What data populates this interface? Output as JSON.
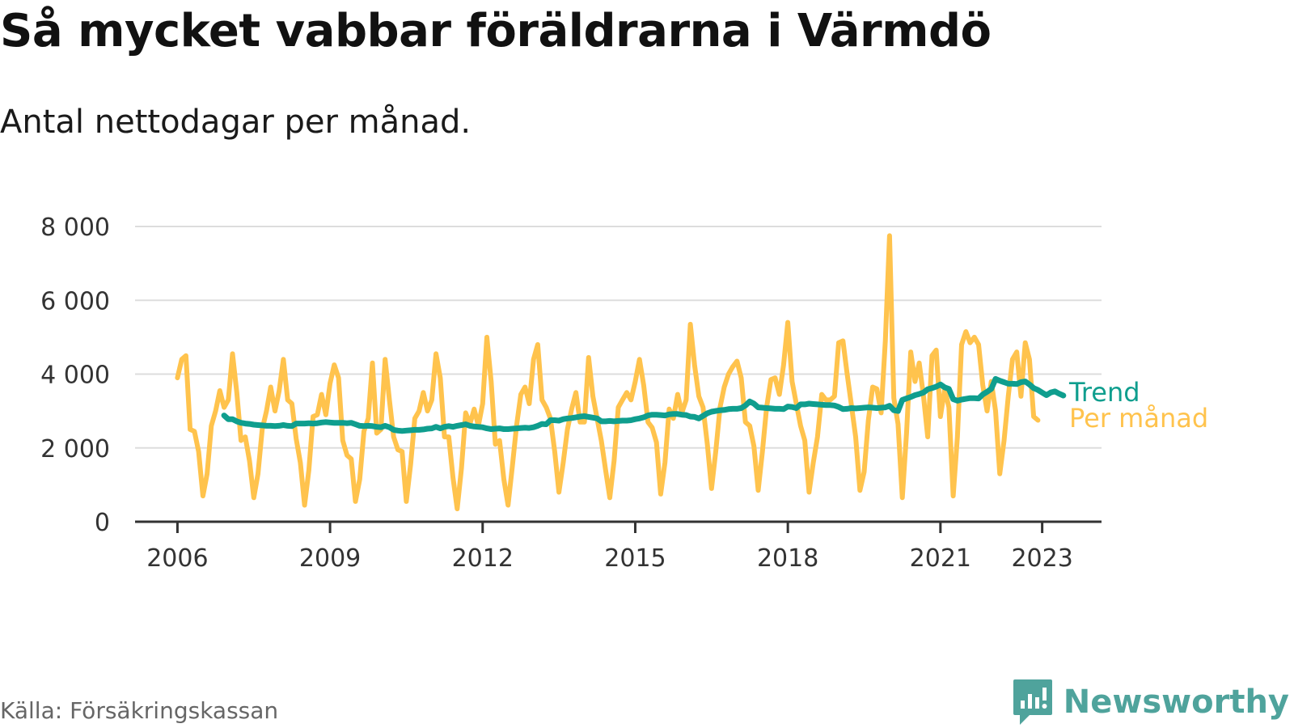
{
  "title": "Så mycket vabbar föräldrarna i Värmdö",
  "subtitle": "Antal nettodagar per månad.",
  "source": "Källa: Försäkringskassan",
  "brand": {
    "name": "Newsworthy",
    "icon": "newsworthy-logo-icon"
  },
  "colors": {
    "monthly": "#ffc34d",
    "trend": "#0f9e8e",
    "grid": "#dddddd",
    "axis": "#333333"
  },
  "chart_data": {
    "type": "line",
    "title": "Så mycket vabbar föräldrarna i Värmdö",
    "subtitle": "Antal nettodagar per månad.",
    "xlabel": "",
    "ylabel": "",
    "ylim": [
      0,
      8000
    ],
    "xlim": [
      "2005-03",
      "2024-03"
    ],
    "yticks": [
      0,
      2000,
      4000,
      6000,
      8000
    ],
    "ytick_labels": [
      "0",
      "2 000",
      "4 000",
      "6 000",
      "8 000"
    ],
    "xticks": [
      "2006-01",
      "2009-01",
      "2012-01",
      "2015-01",
      "2018-01",
      "2021-01",
      "2023-01"
    ],
    "xtick_labels": [
      "2006",
      "2009",
      "2012",
      "2015",
      "2018",
      "2021",
      "2023"
    ],
    "grid": true,
    "legend": "right-inline",
    "series": [
      {
        "name": "Per månad",
        "start": "2006-01",
        "values": [
          3900,
          4400,
          4500,
          2500,
          2450,
          1900,
          700,
          1300,
          2600,
          3000,
          3550,
          3100,
          3300,
          4550,
          3500,
          2200,
          2300,
          1650,
          650,
          1300,
          2500,
          3000,
          3650,
          3000,
          3550,
          4400,
          3300,
          3200,
          2250,
          1600,
          450,
          1400,
          2850,
          2900,
          3450,
          2900,
          3750,
          4250,
          3900,
          2200,
          1800,
          1700,
          550,
          1150,
          2450,
          2800,
          4300,
          2400,
          2500,
          4400,
          3300,
          2300,
          1950,
          1900,
          550,
          1550,
          2800,
          3000,
          3500,
          3000,
          3300,
          4550,
          3900,
          2300,
          2300,
          1200,
          350,
          1450,
          2950,
          2650,
          3050,
          2600,
          3200,
          5000,
          3800,
          2100,
          2200,
          1150,
          450,
          1500,
          2600,
          3450,
          3650,
          3200,
          4400,
          4800,
          3300,
          3100,
          2800,
          1900,
          800,
          1600,
          2500,
          3050,
          3500,
          2700,
          2700,
          4450,
          3400,
          2800,
          2200,
          1400,
          650,
          1650,
          3100,
          3300,
          3500,
          3300,
          3800,
          4400,
          3700,
          2700,
          2550,
          2150,
          750,
          1600,
          3050,
          2800,
          3450,
          2950,
          3300,
          5350,
          4250,
          3400,
          3100,
          2100,
          900,
          1900,
          3100,
          3650,
          4000,
          4200,
          4350,
          3900,
          2700,
          2600,
          2050,
          850,
          1900,
          3100,
          3850,
          3900,
          3450,
          4250,
          5400,
          3800,
          3200,
          2600,
          2200,
          800,
          1600,
          2300,
          3450,
          3300,
          3300,
          3400,
          4850,
          4900,
          4000,
          3150,
          2300,
          850,
          1350,
          2750,
          3650,
          3600,
          2950,
          4900,
          7750,
          3350,
          2650,
          650,
          2400,
          4600,
          3800,
          4300,
          3400,
          2300,
          4500,
          4650,
          2850,
          3600,
          3100,
          700,
          2300,
          4800,
          5150,
          4850,
          5000,
          4800,
          3700,
          3000,
          3800,
          3000,
          1300,
          2200,
          3400,
          4400,
          4600,
          3400,
          4850,
          4400,
          2850,
          2750
        ]
      },
      {
        "name": "Trend",
        "start": "2006-12",
        "values": [
          2880,
          2780,
          2780,
          2720,
          2680,
          2660,
          2650,
          2630,
          2620,
          2610,
          2600,
          2600,
          2590,
          2600,
          2620,
          2600,
          2590,
          2660,
          2660,
          2660,
          2670,
          2660,
          2670,
          2690,
          2700,
          2690,
          2680,
          2680,
          2680,
          2670,
          2680,
          2640,
          2600,
          2590,
          2600,
          2590,
          2570,
          2560,
          2600,
          2560,
          2490,
          2470,
          2460,
          2470,
          2480,
          2490,
          2490,
          2500,
          2520,
          2530,
          2570,
          2530,
          2570,
          2590,
          2570,
          2600,
          2620,
          2640,
          2600,
          2580,
          2570,
          2560,
          2530,
          2510,
          2520,
          2530,
          2510,
          2510,
          2520,
          2530,
          2540,
          2550,
          2540,
          2560,
          2600,
          2650,
          2640,
          2750,
          2750,
          2740,
          2780,
          2800,
          2810,
          2830,
          2850,
          2860,
          2840,
          2820,
          2800,
          2720,
          2720,
          2730,
          2720,
          2730,
          2740,
          2740,
          2750,
          2780,
          2800,
          2830,
          2880,
          2900,
          2900,
          2890,
          2880,
          2910,
          2920,
          2920,
          2900,
          2890,
          2850,
          2840,
          2800,
          2870,
          2940,
          2980,
          3000,
          3020,
          3030,
          3050,
          3060,
          3060,
          3080,
          3150,
          3260,
          3200,
          3100,
          3090,
          3080,
          3070,
          3060,
          3060,
          3050,
          3120,
          3110,
          3080,
          3180,
          3180,
          3200,
          3190,
          3180,
          3170,
          3160,
          3160,
          3150,
          3110,
          3050,
          3060,
          3080,
          3070,
          3080,
          3090,
          3100,
          3090,
          3080,
          3090,
          3100,
          3140,
          3020,
          3000,
          3300,
          3340,
          3380,
          3430,
          3460,
          3500,
          3590,
          3620,
          3660,
          3720,
          3640,
          3600,
          3320,
          3280,
          3310,
          3330,
          3350,
          3350,
          3340,
          3450,
          3520,
          3600,
          3870,
          3820,
          3780,
          3740,
          3740,
          3730,
          3780,
          3800,
          3720,
          3620,
          3570,
          3500,
          3430,
          3500,
          3530,
          3470,
          3420
        ]
      }
    ]
  }
}
